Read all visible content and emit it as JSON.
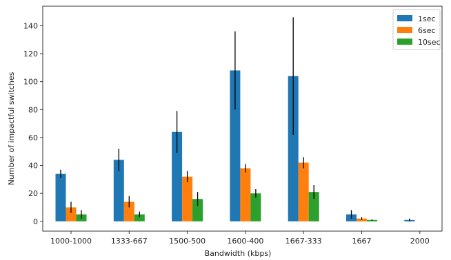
{
  "chart_data": {
    "type": "bar",
    "title": "",
    "xlabel": "Bandwidth (kbps)",
    "ylabel": "Number of impactful switches",
    "ylim": [
      -7,
      154
    ],
    "yticks": [
      0,
      20,
      40,
      60,
      80,
      100,
      120,
      140
    ],
    "grid": false,
    "legend_position": "top-right",
    "categories": [
      "1000-1000",
      "1333-667",
      "1500-500",
      "1600-400",
      "1667-333",
      "1667",
      "2000"
    ],
    "series": [
      {
        "name": "1sec",
        "color": "#1f77b4",
        "values": [
          34,
          44,
          64,
          108,
          104,
          5,
          1
        ],
        "errors": [
          3,
          8,
          15,
          28,
          42,
          3,
          1
        ]
      },
      {
        "name": "6sec",
        "color": "#ff7f0e",
        "values": [
          10,
          14,
          32,
          38,
          42,
          2,
          0
        ],
        "errors": [
          4,
          4,
          4,
          3,
          4,
          1,
          0
        ]
      },
      {
        "name": "10sec",
        "color": "#2ca02c",
        "values": [
          5,
          5,
          16,
          20,
          21,
          1,
          0
        ],
        "errors": [
          3,
          2,
          5,
          3,
          5,
          0.5,
          0
        ]
      }
    ]
  }
}
